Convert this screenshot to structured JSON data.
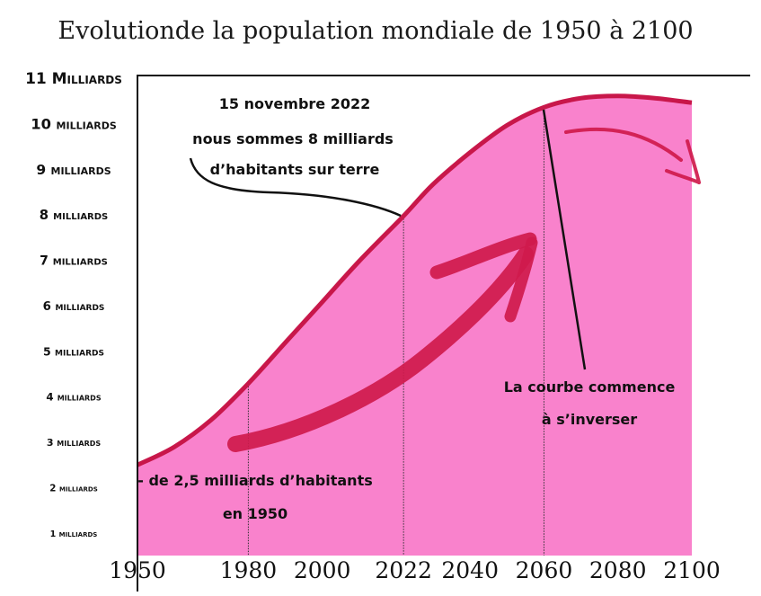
{
  "colors": {
    "area": "#f982cc",
    "curve": "#c8174a",
    "arrow": "#cf1a4c",
    "axis": "#111111"
  },
  "chart_data": {
    "type": "area",
    "title": "Evolutionde la population mondiale de 1950 à 2100",
    "xlabel": "",
    "ylabel": "",
    "xlim": [
      1950,
      2100
    ],
    "ylim": [
      0.5,
      11.1
    ],
    "x_ticks": [
      "1950",
      "1980",
      "2000",
      "2022",
      "2040",
      "2060",
      "2080",
      "2100"
    ],
    "y_ticks": [
      {
        "value": 1,
        "label": "1 milliards"
      },
      {
        "value": 2,
        "label": "2 milliards"
      },
      {
        "value": 3,
        "label": "3 milliards"
      },
      {
        "value": 4,
        "label": "4 milliards"
      },
      {
        "value": 5,
        "label": "5 milliards"
      },
      {
        "value": 6,
        "label": "6 milliards"
      },
      {
        "value": 7,
        "label": "7 milliards"
      },
      {
        "value": 8,
        "label": "8 milliards"
      },
      {
        "value": 9,
        "label": "9 milliards"
      },
      {
        "value": 10,
        "label": "10 milliards"
      },
      {
        "value": 11,
        "label": "11 Milliards"
      }
    ],
    "series": [
      {
        "x": [
          1950,
          1960,
          1970,
          1980,
          1990,
          2000,
          2010,
          2022,
          2030,
          2040,
          2050,
          2060,
          2070,
          2080,
          2090,
          2100
        ],
        "y": [
          2.5,
          2.9,
          3.5,
          4.3,
          5.2,
          6.1,
          7.0,
          8.0,
          8.7,
          9.4,
          10.0,
          10.4,
          10.6,
          10.65,
          10.6,
          10.5
        ]
      }
    ],
    "markers": [
      {
        "x": 1980,
        "y": 4.3
      },
      {
        "x": 2022,
        "y": 8.0
      },
      {
        "x": 2060,
        "y": 10.4
      }
    ],
    "annotations": {
      "note_2022": [
        "15 novembre 2022",
        "nous sommes 8 milliards",
        "d’habitants sur terre"
      ],
      "note_1950": [
        "- de 2,5 milliards d’habitants",
        "en 1950"
      ],
      "note_inversion": [
        "La courbe commence",
        "à s’inverser"
      ]
    }
  }
}
